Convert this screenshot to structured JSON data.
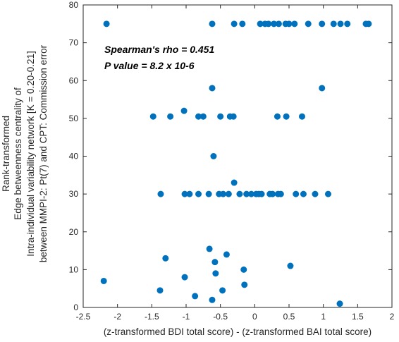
{
  "chart_data": {
    "type": "scatter",
    "xlabel": "(z-transformed BDI total score) - (z-transformed BAI total score)",
    "ylabel_lines": [
      "Rank-transformed",
      "Edge betweenness centrality of",
      "Intra-individual variability network [K = 0.20-0.21]",
      "between MMPI-2: Pt(7) and CPT: Commission error"
    ],
    "xlim": [
      -2.5,
      2
    ],
    "ylim": [
      0,
      80
    ],
    "xticks": [
      -2.5,
      -2,
      -1.5,
      -1,
      -0.5,
      0,
      0.5,
      1,
      1.5,
      2
    ],
    "xtick_labels": [
      "-2.5",
      "-2",
      "-1.5",
      "-1",
      "-0.5",
      "0",
      "0.5",
      "1",
      "1.5",
      "2"
    ],
    "yticks": [
      0,
      10,
      20,
      30,
      40,
      50,
      60,
      70,
      80
    ],
    "ytick_labels": [
      "0",
      "10",
      "20",
      "30",
      "40",
      "50",
      "60",
      "70",
      "80"
    ],
    "grid": false,
    "marker_color": "#0072BD",
    "annotations": [
      "Spearman's rho = 0.451",
      "P value = 8.2 x 10-6"
    ],
    "points": [
      [
        -2.16,
        75
      ],
      [
        -0.62,
        75
      ],
      [
        -0.3,
        75
      ],
      [
        -0.18,
        75
      ],
      [
        0.08,
        75
      ],
      [
        0.15,
        75
      ],
      [
        0.2,
        75
      ],
      [
        0.28,
        75
      ],
      [
        0.35,
        75
      ],
      [
        0.45,
        75
      ],
      [
        0.5,
        75
      ],
      [
        0.58,
        75
      ],
      [
        0.78,
        75
      ],
      [
        0.98,
        75
      ],
      [
        1.15,
        75
      ],
      [
        1.25,
        75
      ],
      [
        1.35,
        75
      ],
      [
        1.62,
        75
      ],
      [
        1.66,
        75
      ],
      [
        0.98,
        58
      ],
      [
        -0.62,
        58
      ],
      [
        -1.48,
        50.5
      ],
      [
        -1.23,
        50.5
      ],
      [
        -1.03,
        52
      ],
      [
        -0.82,
        50.5
      ],
      [
        -0.75,
        50.5
      ],
      [
        -0.5,
        50.5
      ],
      [
        -0.36,
        50.5
      ],
      [
        -0.31,
        50.5
      ],
      [
        0.33,
        50.5
      ],
      [
        0.46,
        50.5
      ],
      [
        0.69,
        50.5
      ],
      [
        -0.6,
        40
      ],
      [
        -0.3,
        33
      ],
      [
        -1.37,
        30
      ],
      [
        -1.02,
        30
      ],
      [
        -0.95,
        30
      ],
      [
        -0.82,
        30
      ],
      [
        -0.67,
        30
      ],
      [
        -0.52,
        30
      ],
      [
        -0.46,
        30
      ],
      [
        -0.38,
        30
      ],
      [
        -0.22,
        30
      ],
      [
        -0.12,
        30
      ],
      [
        -0.05,
        30
      ],
      [
        0.02,
        30
      ],
      [
        0.06,
        30
      ],
      [
        0.1,
        30
      ],
      [
        0.22,
        30
      ],
      [
        0.26,
        30
      ],
      [
        0.34,
        30
      ],
      [
        0.38,
        30
      ],
      [
        0.6,
        30
      ],
      [
        0.71,
        30
      ],
      [
        0.88,
        30
      ],
      [
        1.07,
        30
      ],
      [
        -2.2,
        7
      ],
      [
        -1.38,
        4.5
      ],
      [
        -1.3,
        13
      ],
      [
        -1.02,
        8
      ],
      [
        -0.87,
        3
      ],
      [
        -0.66,
        15.5
      ],
      [
        -0.58,
        12
      ],
      [
        -0.57,
        9
      ],
      [
        -0.47,
        4.5
      ],
      [
        -0.41,
        14
      ],
      [
        -0.16,
        10
      ],
      [
        -0.15,
        6
      ],
      [
        0.52,
        11
      ],
      [
        -0.62,
        2
      ],
      [
        1.24,
        1
      ]
    ]
  }
}
